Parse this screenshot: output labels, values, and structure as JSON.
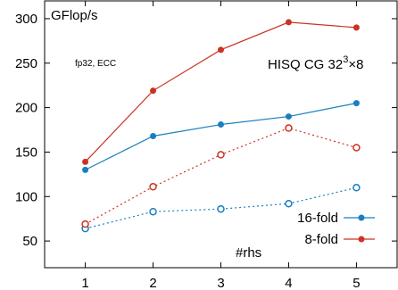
{
  "chart_data": {
    "type": "line",
    "x": [
      1,
      2,
      3,
      4,
      5
    ],
    "xlim": [
      0.4,
      5.6
    ],
    "ylim": [
      20,
      320
    ],
    "xticks": [
      "1",
      "2",
      "3",
      "4",
      "5"
    ],
    "yticks": [
      "50",
      "100",
      "150",
      "200",
      "250",
      "300"
    ],
    "xlabel": "#rhs",
    "ylabel": "GFlop/s",
    "note": "fp32, ECC",
    "title": {
      "main": "HISQ CG 32",
      "sup": "3",
      "tail": "×8"
    },
    "legend_position": "bottom-right",
    "grid": false,
    "series": [
      {
        "name": "16-fold",
        "color": "#1a7fbf",
        "marker": "filled",
        "dash": false,
        "values": [
          130,
          168,
          181,
          190,
          205
        ]
      },
      {
        "name": "8-fold",
        "color": "#cc3322",
        "marker": "filled",
        "dash": false,
        "values": [
          139,
          219,
          265,
          296,
          290
        ]
      },
      {
        "name": "",
        "color": "#1a7fbf",
        "marker": "open",
        "dash": true,
        "values": [
          64,
          83,
          86,
          92,
          110
        ]
      },
      {
        "name": "",
        "color": "#cc3322",
        "marker": "open",
        "dash": true,
        "values": [
          69,
          111,
          147,
          177,
          155
        ]
      }
    ]
  }
}
